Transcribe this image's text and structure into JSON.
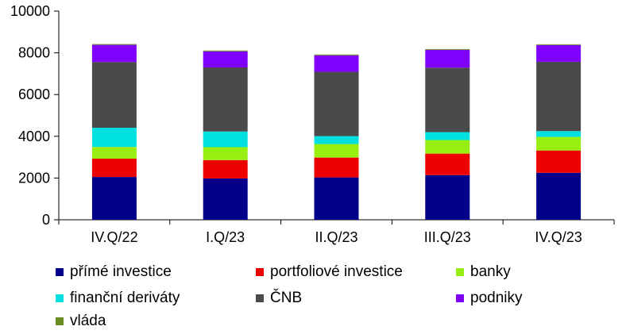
{
  "chart_data": {
    "type": "bar",
    "stacked": true,
    "categories": [
      "IV.Q/22",
      "I.Q/23",
      "II.Q/23",
      "III.Q/23",
      "IV.Q/23"
    ],
    "series": [
      {
        "name": "přímé investice",
        "color": "#00008b",
        "values": [
          2050,
          1980,
          2030,
          2140,
          2250
        ]
      },
      {
        "name": "portfoliové investice",
        "color": "#ee0000",
        "values": [
          880,
          880,
          950,
          1030,
          1070
        ]
      },
      {
        "name": "banky",
        "color": "#99ee11",
        "values": [
          560,
          620,
          650,
          650,
          650
        ]
      },
      {
        "name": "finanční deriváty",
        "color": "#00e0e0",
        "values": [
          920,
          750,
          380,
          380,
          280
        ]
      },
      {
        "name": "ČNB",
        "color": "#4a4a4a",
        "values": [
          3150,
          3070,
          3080,
          3090,
          3320
        ]
      },
      {
        "name": "podniky",
        "color": "#8000ff",
        "values": [
          820,
          770,
          790,
          850,
          800
        ]
      },
      {
        "name": "vláda",
        "color": "#6b8e23",
        "values": [
          40,
          40,
          40,
          40,
          40
        ]
      }
    ],
    "ylim": [
      0,
      10000
    ],
    "yticks": [
      "0",
      "2000",
      "4000",
      "6000",
      "8000",
      "10000"
    ],
    "grid": false,
    "legend_position": "bottom"
  }
}
